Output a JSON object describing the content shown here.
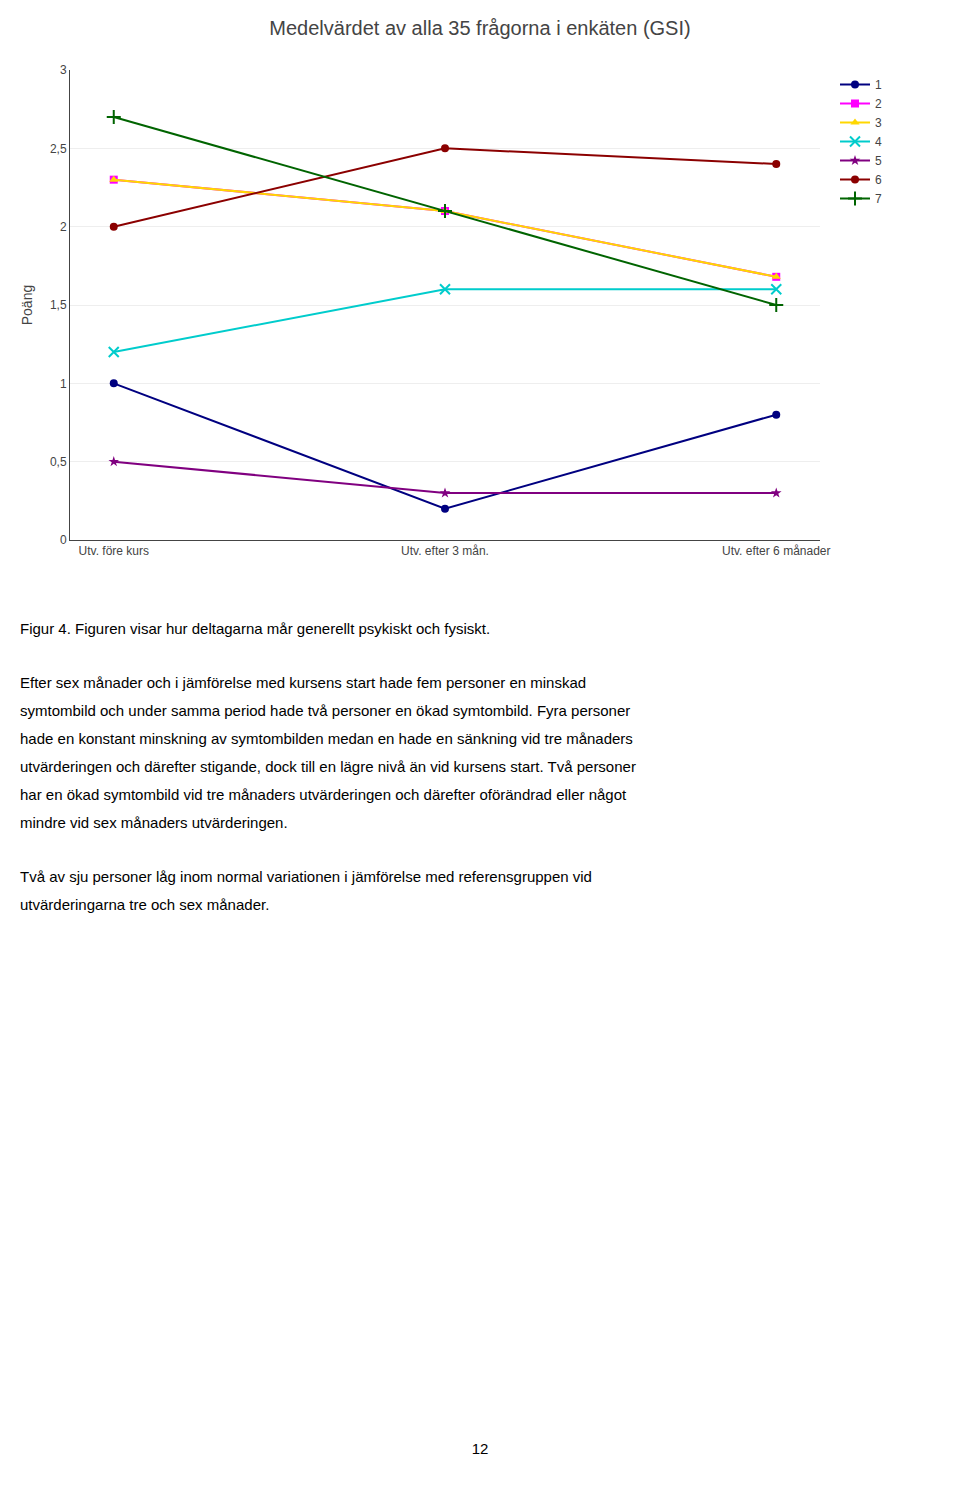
{
  "chart_data": {
    "type": "line",
    "title": "Medelvärdet av alla 35 frågorna i enkäten (GSI)",
    "y_label": "Poäng",
    "categories": [
      "Utv. före kurs",
      "Utv. efter 3 mån.",
      "Utv. efter 6 månader"
    ],
    "series": [
      {
        "name": "1",
        "color": "#000080",
        "marker": "circle",
        "values": [
          1.0,
          0.2,
          0.8
        ]
      },
      {
        "name": "2",
        "color": "#FF00FF",
        "marker": "square",
        "values": [
          2.3,
          2.1,
          1.68
        ]
      },
      {
        "name": "3",
        "color": "#FFD700",
        "marker": "triangle",
        "values": [
          2.3,
          2.1,
          1.68
        ]
      },
      {
        "name": "4",
        "color": "#00CCCC",
        "marker": "x",
        "values": [
          1.2,
          1.6,
          1.6
        ]
      },
      {
        "name": "5",
        "color": "#800080",
        "marker": "star",
        "values": [
          0.5,
          0.3,
          0.3
        ]
      },
      {
        "name": "6",
        "color": "#8B0000",
        "marker": "circle",
        "values": [
          2.0,
          2.5,
          2.4
        ]
      },
      {
        "name": "7",
        "color": "#006400",
        "marker": "plus",
        "values": [
          2.7,
          2.1,
          1.5
        ]
      }
    ],
    "ylim": [
      0,
      3
    ],
    "yticks": [
      0,
      {
        "value": 0.5,
        "label": "0,5"
      },
      1,
      {
        "value": 1.5,
        "label": "1,5"
      },
      2,
      {
        "value": 2.5,
        "label": "2,5"
      },
      3
    ],
    "grid": true,
    "legend": "right",
    "annotations": [
      "Figur 4. Figuren visar hur deltagarna mår generellt psykiskt och fysiskt.",
      [
        "Efter sex månader och i jämförelse med kursens start hade fem personer en minskad",
        "symtombild och under samma period hade två personer en ökad symtombild. Fyra personer",
        "hade en konstant minskning av symtombilden medan en hade en sänkning vid tre månaders",
        "utvärderingen och därefter stigande, dock till en lägre nivå än vid kursens start. Två personer",
        "har en ökad symtombild vid tre månaders utvärderingen och därefter oförändrad eller något",
        "mindre vid sex månaders utvärderingen."
      ],
      [
        "Två av sju personer låg inom normal variationen i jämförelse med referensgruppen vid",
        "utvärderingarna tre och sex månader."
      ],
      "12"
    ]
  }
}
